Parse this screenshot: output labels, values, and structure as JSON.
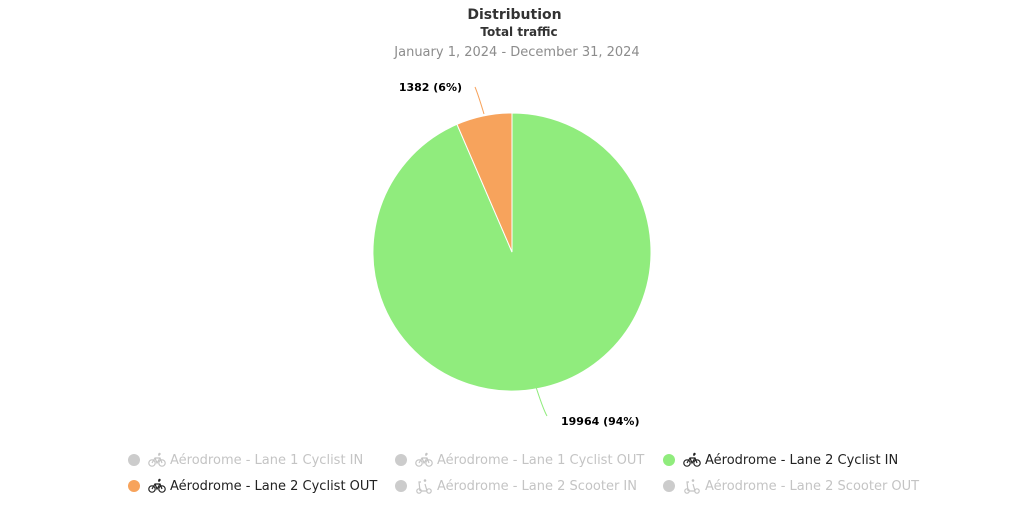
{
  "title": "Distribution",
  "subtitle": "Total traffic",
  "date_range": "January 1, 2024 - December 31, 2024",
  "colors": {
    "green": "#90ec7d",
    "orange": "#f7a35c",
    "inactive": "#cccccc"
  },
  "chart_data": {
    "type": "pie",
    "title": "Distribution",
    "subtitle": "Total traffic",
    "slices": [
      {
        "label": "Aérodrome - Lane 2 Cyclist IN",
        "value": 19964,
        "percent": 94,
        "data_label": "19964 (94%)",
        "color": "#90ec7d"
      },
      {
        "label": "Aérodrome - Lane 2 Cyclist OUT",
        "value": 1382,
        "percent": 6,
        "data_label": "1382 (6%)",
        "color": "#f7a35c"
      }
    ]
  },
  "legend": [
    {
      "label": "Aérodrome - Lane 1 Cyclist IN",
      "icon": "bicycle-icon",
      "visible": false,
      "color": "#cccccc"
    },
    {
      "label": "Aérodrome - Lane 1 Cyclist OUT",
      "icon": "bicycle-icon",
      "visible": false,
      "color": "#cccccc"
    },
    {
      "label": "Aérodrome - Lane 2 Cyclist IN",
      "icon": "bicycle-icon",
      "visible": true,
      "color": "#90ec7d"
    },
    {
      "label": "Aérodrome - Lane 2 Cyclist OUT",
      "icon": "bicycle-icon",
      "visible": true,
      "color": "#f7a35c"
    },
    {
      "label": "Aérodrome - Lane 2 Scooter IN",
      "icon": "scooter-icon",
      "visible": false,
      "color": "#cccccc"
    },
    {
      "label": "Aérodrome - Lane 2 Scooter OUT",
      "icon": "scooter-icon",
      "visible": false,
      "color": "#cccccc"
    }
  ]
}
